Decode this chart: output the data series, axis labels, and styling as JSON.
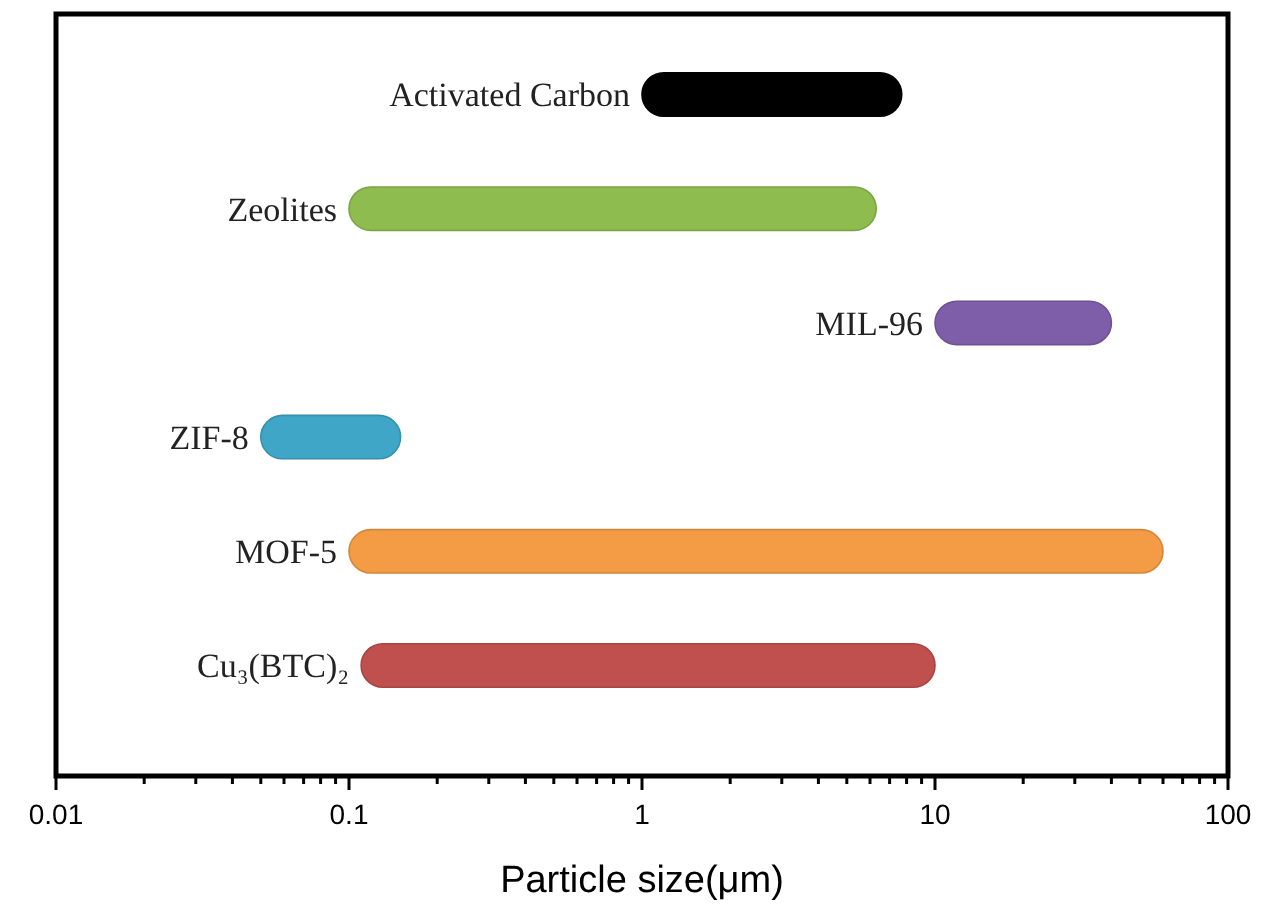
{
  "chart_data": {
    "type": "bar",
    "orientation": "horizontal",
    "log": "x",
    "xlabel": "Particle size(μm)",
    "categories": [
      "Activated Carbon",
      "Zeolites",
      "MIL-96",
      "ZIF-8",
      "MOF-5",
      "Cu₃(BTC)₂"
    ],
    "base": [
      1,
      0.1,
      10,
      0.05,
      0.1,
      0.11
    ],
    "values": [
      6.7,
      6.2,
      30,
      0.1,
      59.9,
      9.89
    ],
    "colors": [
      "#000000",
      "#8fbc4f",
      "#7e5ea8",
      "#40a6c8",
      "#f39b45",
      "#c0504d"
    ],
    "xlim": [
      0.01,
      100
    ],
    "xticks": [
      0.01,
      {
        "value": 0.02,
        "label": null
      },
      {
        "value": 0.03,
        "label": null
      },
      {
        "value": 0.04,
        "label": null
      },
      {
        "value": 0.05,
        "label": null
      },
      {
        "value": 0.06,
        "label": null
      },
      {
        "value": 0.07,
        "label": null
      },
      {
        "value": 0.08,
        "label": null
      },
      {
        "value": 0.09,
        "label": null
      },
      0.1,
      {
        "value": 0.2,
        "label": null
      },
      {
        "value": 0.3,
        "label": null
      },
      {
        "value": 0.4,
        "label": null
      },
      {
        "value": 0.5,
        "label": null
      },
      {
        "value": 0.6,
        "label": null
      },
      {
        "value": 0.7,
        "label": null
      },
      {
        "value": 0.8,
        "label": null
      },
      {
        "value": 0.9,
        "label": null
      },
      1,
      {
        "value": 2,
        "label": null
      },
      {
        "value": 3,
        "label": null
      },
      {
        "value": 4,
        "label": null
      },
      {
        "value": 5,
        "label": null
      },
      {
        "value": 6,
        "label": null
      },
      {
        "value": 7,
        "label": null
      },
      {
        "value": 8,
        "label": null
      },
      {
        "value": 9,
        "label": null
      },
      10,
      {
        "value": 20,
        "label": null
      },
      {
        "value": 30,
        "label": null
      },
      {
        "value": 40,
        "label": null
      },
      {
        "value": 50,
        "label": null
      },
      {
        "value": 60,
        "label": null
      },
      {
        "value": 70,
        "label": null
      },
      {
        "value": 80,
        "label": null
      },
      {
        "value": 90,
        "label": null
      },
      100
    ],
    "grid": false
  }
}
